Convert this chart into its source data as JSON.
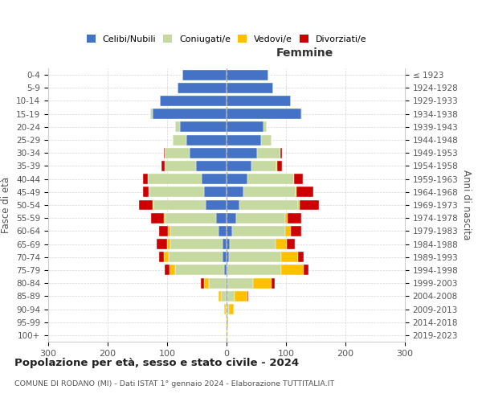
{
  "age_groups": [
    "0-4",
    "5-9",
    "10-14",
    "15-19",
    "20-24",
    "25-29",
    "30-34",
    "35-39",
    "40-44",
    "45-49",
    "50-54",
    "55-59",
    "60-64",
    "65-69",
    "70-74",
    "75-79",
    "80-84",
    "85-89",
    "90-94",
    "95-99",
    "100+"
  ],
  "birth_years": [
    "2019-2023",
    "2014-2018",
    "2009-2013",
    "2004-2008",
    "1999-2003",
    "1994-1998",
    "1989-1993",
    "1984-1988",
    "1979-1983",
    "1974-1978",
    "1969-1973",
    "1964-1968",
    "1959-1963",
    "1954-1958",
    "1949-1953",
    "1944-1948",
    "1939-1943",
    "1934-1938",
    "1929-1933",
    "1924-1928",
    "≤ 1923"
  ],
  "colors": {
    "celibe": "#4472c4",
    "coniugato": "#c5d9a0",
    "vedovo": "#ffc000",
    "divorziato": "#cc0000"
  },
  "male": {
    "celibe": [
      75,
      82,
      112,
      125,
      78,
      68,
      62,
      52,
      42,
      38,
      35,
      18,
      13,
      7,
      7,
      4,
      2,
      1,
      0,
      0,
      0
    ],
    "coniugato": [
      0,
      0,
      0,
      3,
      8,
      22,
      42,
      52,
      90,
      92,
      88,
      85,
      82,
      88,
      90,
      82,
      28,
      8,
      2,
      0,
      0
    ],
    "vedovo": [
      0,
      0,
      0,
      0,
      0,
      0,
      0,
      0,
      1,
      1,
      2,
      2,
      3,
      5,
      8,
      10,
      8,
      5,
      2,
      0,
      0
    ],
    "divorziato": [
      0,
      0,
      0,
      0,
      0,
      0,
      2,
      6,
      8,
      10,
      22,
      22,
      16,
      18,
      8,
      8,
      5,
      0,
      0,
      0,
      0
    ]
  },
  "female": {
    "nubile": [
      70,
      78,
      108,
      125,
      62,
      58,
      52,
      42,
      35,
      28,
      22,
      16,
      10,
      5,
      4,
      2,
      2,
      1,
      0,
      0,
      0
    ],
    "coniugata": [
      0,
      0,
      0,
      2,
      6,
      18,
      38,
      42,
      78,
      88,
      98,
      82,
      88,
      78,
      88,
      90,
      42,
      12,
      4,
      0,
      0
    ],
    "vedova": [
      0,
      0,
      0,
      0,
      0,
      0,
      0,
      1,
      1,
      2,
      3,
      5,
      10,
      18,
      28,
      38,
      32,
      22,
      8,
      3,
      1
    ],
    "divorziata": [
      0,
      0,
      0,
      0,
      0,
      0,
      3,
      8,
      14,
      28,
      32,
      22,
      18,
      14,
      10,
      8,
      5,
      2,
      0,
      0,
      0
    ]
  },
  "xlim": 300,
  "title": "Popolazione per età, sesso e stato civile - 2024",
  "subtitle": "COMUNE DI RODANO (MI) - Dati ISTAT 1° gennaio 2024 - Elaborazione TUTTITALIA.IT",
  "ylabel_left": "Fasce di età",
  "ylabel_right": "Anni di nascita",
  "header_right": "Femmine",
  "legend_labels": [
    "Celibi/Nubili",
    "Coniugati/e",
    "Vedovi/e",
    "Divorziati/e"
  ],
  "background": "#ffffff",
  "grid_color": "#cccccc"
}
